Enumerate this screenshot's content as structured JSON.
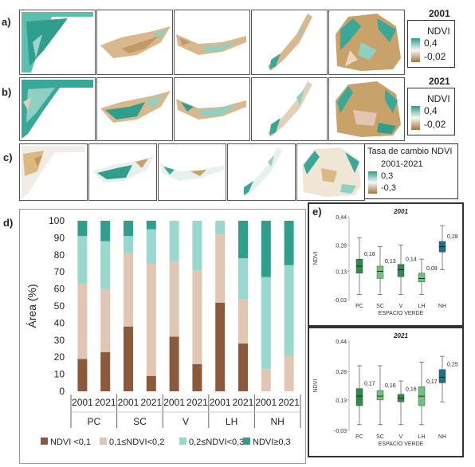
{
  "panels": {
    "a": {
      "label": "a)",
      "year": "2001",
      "legend_title": "NDVI",
      "legend_max": "0,4",
      "legend_min": "-0,02"
    },
    "b": {
      "label": "b)",
      "year": "2021",
      "legend_title": "NDVI",
      "legend_max": "0,4",
      "legend_min": "-0,02"
    },
    "c": {
      "label": "c)",
      "legend_title": "Tasa de cambio NDVI",
      "legend_period": "2001-2021",
      "legend_max": "0,3",
      "legend_min": "-0,3"
    },
    "d": {
      "label": "d)"
    },
    "e": {
      "label": "e)"
    }
  },
  "colors": {
    "ndvi_lt_01": "#8b5a3c",
    "ndvi_01_02": "#e2c6b4",
    "ndvi_02_03": "#99d8cc",
    "ndvi_ge_03": "#2f9e8c",
    "box_green_dark": "#2e8b4a",
    "box_green_light": "#6fc27d",
    "box_blue": "#1f6f8b",
    "map_brown": "#c9a26a",
    "map_teal": "#3aa898"
  },
  "chart_data": [
    {
      "type": "bar",
      "stacked": true,
      "ylabel": "Área (%)",
      "ylim": [
        0,
        100
      ],
      "yticks": [
        0,
        10,
        20,
        30,
        40,
        50,
        60,
        70,
        80,
        90,
        100
      ],
      "categories": [
        "2001",
        "2021",
        "2001",
        "2021",
        "2001",
        "2021",
        "2001",
        "2021",
        "2001",
        "2021"
      ],
      "groups": [
        "PC",
        "SC",
        "V",
        "LH",
        "NH"
      ],
      "legend_position": "bottom",
      "series": [
        {
          "name": "NDVI <0,1",
          "values": [
            19,
            23,
            38,
            9,
            32,
            16,
            52,
            28,
            0,
            0
          ]
        },
        {
          "name": "0,1≤NDVI<0,2",
          "values": [
            44,
            37,
            43,
            66,
            44,
            55,
            40,
            26,
            13,
            21
          ]
        },
        {
          "name": "0,2≤NDVI<0,3",
          "values": [
            28,
            28,
            10,
            20,
            24,
            29,
            8,
            24,
            54,
            53
          ]
        },
        {
          "name": "NDVI≥0,3",
          "values": [
            9,
            12,
            9,
            5,
            0,
            0,
            0,
            22,
            33,
            26
          ]
        }
      ]
    },
    {
      "type": "box",
      "title": "2001",
      "xlabel": "ESPACIO VERDE",
      "ylabel": "NDVI",
      "ylim": [
        -0.03,
        0.44
      ],
      "yticks": [
        "-0,03",
        "0,13",
        "0,28",
        "0,44"
      ],
      "categories": [
        "PC",
        "SC",
        "V",
        "LH",
        "NH"
      ],
      "labels": [
        "0,16",
        "0,13",
        "0,14",
        "0,09",
        "0,28"
      ],
      "boxes": [
        {
          "min": 0.0,
          "q1": 0.12,
          "median": 0.16,
          "q3": 0.2,
          "max": 0.32
        },
        {
          "min": 0.0,
          "q1": 0.09,
          "median": 0.13,
          "q3": 0.16,
          "max": 0.27
        },
        {
          "min": 0.0,
          "q1": 0.1,
          "median": 0.14,
          "q3": 0.17,
          "max": 0.28
        },
        {
          "min": 0.0,
          "q1": 0.07,
          "median": 0.09,
          "q3": 0.12,
          "max": 0.2
        },
        {
          "min": 0.14,
          "q1": 0.24,
          "median": 0.27,
          "q3": 0.3,
          "max": 0.39
        }
      ]
    },
    {
      "type": "box",
      "title": "2021",
      "xlabel": "ESPACIO VERDE",
      "ylabel": "NDVI",
      "ylim": [
        -0.03,
        0.44
      ],
      "yticks": [
        "-0,03",
        "0,13",
        "0,28",
        "0,44"
      ],
      "categories": [
        "PC",
        "SC",
        "V",
        "LH",
        "NH"
      ],
      "labels": [
        "0,17",
        "0,16",
        "0,16",
        "0,17",
        "0,25"
      ],
      "boxes": [
        {
          "min": 0.0,
          "q1": 0.1,
          "median": 0.15,
          "q3": 0.19,
          "max": 0.31
        },
        {
          "min": 0.0,
          "q1": 0.13,
          "median": 0.15,
          "q3": 0.18,
          "max": 0.31
        },
        {
          "min": 0.0,
          "q1": 0.12,
          "median": 0.14,
          "q3": 0.16,
          "max": 0.23
        },
        {
          "min": 0.0,
          "q1": 0.1,
          "median": 0.15,
          "q3": 0.2,
          "max": 0.33
        },
        {
          "min": 0.12,
          "q1": 0.22,
          "median": 0.25,
          "q3": 0.29,
          "max": 0.36
        }
      ]
    }
  ]
}
